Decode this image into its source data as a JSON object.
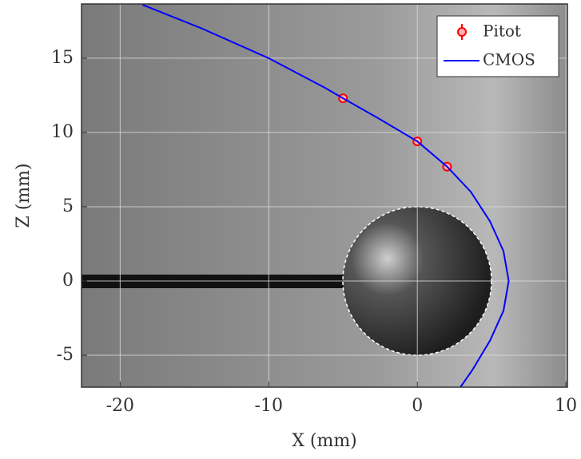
{
  "chart_data": {
    "type": "line",
    "xlabel": "X (mm)",
    "ylabel": "Z (mm)",
    "xlim": [
      -22.6,
      10.1
    ],
    "ylim": [
      -7.15,
      18.65
    ],
    "xticks": [
      -20,
      -10,
      0,
      10
    ],
    "yticks": [
      -5,
      0,
      5,
      10,
      15
    ],
    "grid": true,
    "legend": "upper right",
    "series": [
      {
        "name": "Pitot",
        "type": "scatter",
        "color": "#ff0000",
        "x": [
          -5,
          0,
          2
        ],
        "values": [
          12.3,
          9.4,
          7.7
        ],
        "errors": [
          0.3,
          0.3,
          0.3
        ]
      },
      {
        "name": "CMOS",
        "type": "line",
        "color": "#0000ff",
        "x": [
          -18.5,
          -14.5,
          -10,
          -6.2,
          -5,
          -2.7,
          0,
          2,
          3.6,
          4.9,
          5.8,
          6.15,
          5.8,
          4.9,
          3.7,
          2.9
        ],
        "values": [
          18.6,
          17,
          15,
          13,
          12.3,
          11,
          9.4,
          7.7,
          6,
          4,
          2,
          0,
          -2,
          -4,
          -6,
          -7.15
        ]
      }
    ]
  }
}
